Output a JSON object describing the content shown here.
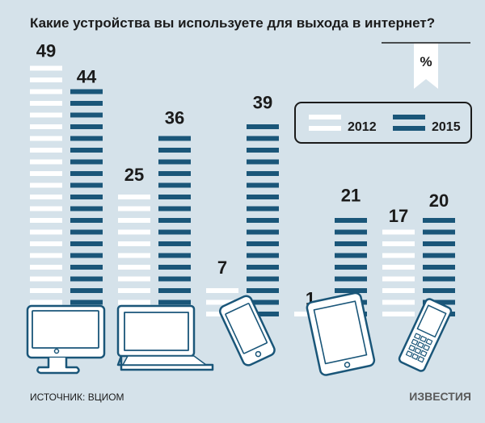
{
  "chart_data": {
    "type": "bar",
    "title": "Какие устройства вы используете для выхода в интернет?",
    "unit": "%",
    "categories": [
      "desktop-computer",
      "laptop",
      "smartphone",
      "tablet",
      "mobile-phone"
    ],
    "series": [
      {
        "name": "2012",
        "values": [
          49,
          25,
          7,
          1,
          17
        ],
        "color": "#ffffff"
      },
      {
        "name": "2015",
        "values": [
          44,
          36,
          39,
          21,
          20
        ],
        "color": "#1a5679"
      }
    ],
    "ylim": [
      0,
      50
    ],
    "grid": false,
    "legend": "top-right"
  },
  "source": "ИСТОЧНИК: ВЦИОМ",
  "logo": "ИЗВЕСТИЯ",
  "colors": {
    "background": "#d5e2ea",
    "accent": "#1a5679",
    "text": "#1b1b1b"
  }
}
